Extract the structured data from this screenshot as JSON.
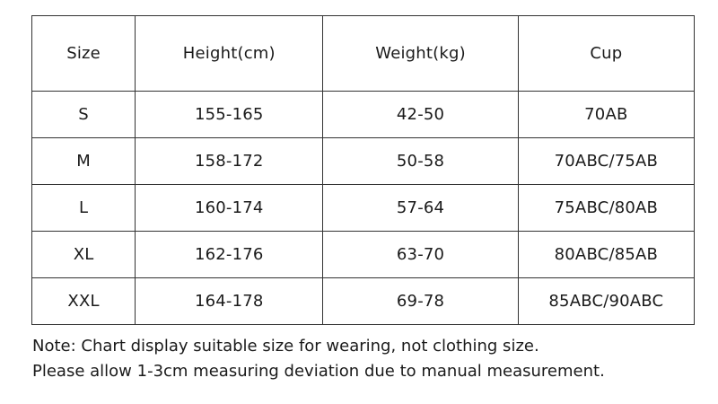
{
  "table": {
    "headers": [
      "Size",
      "Height(cm)",
      "Weight(kg)",
      "Cup"
    ],
    "rows": [
      [
        "S",
        "155-165",
        "42-50",
        "70AB"
      ],
      [
        "M",
        "158-172",
        "50-58",
        "70ABC/75AB"
      ],
      [
        "L",
        "160-174",
        "57-64",
        "75ABC/80AB"
      ],
      [
        "XL",
        "162-176",
        "63-70",
        "80ABC/85AB"
      ],
      [
        "XXL",
        "164-178",
        "69-78",
        "85ABC/90ABC"
      ]
    ]
  },
  "notes": {
    "label": "Note:",
    "line1": " Chart display suitable size for wearing, not clothing size.",
    "line2": "Please allow 1-3cm measuring deviation due to manual measurement."
  }
}
